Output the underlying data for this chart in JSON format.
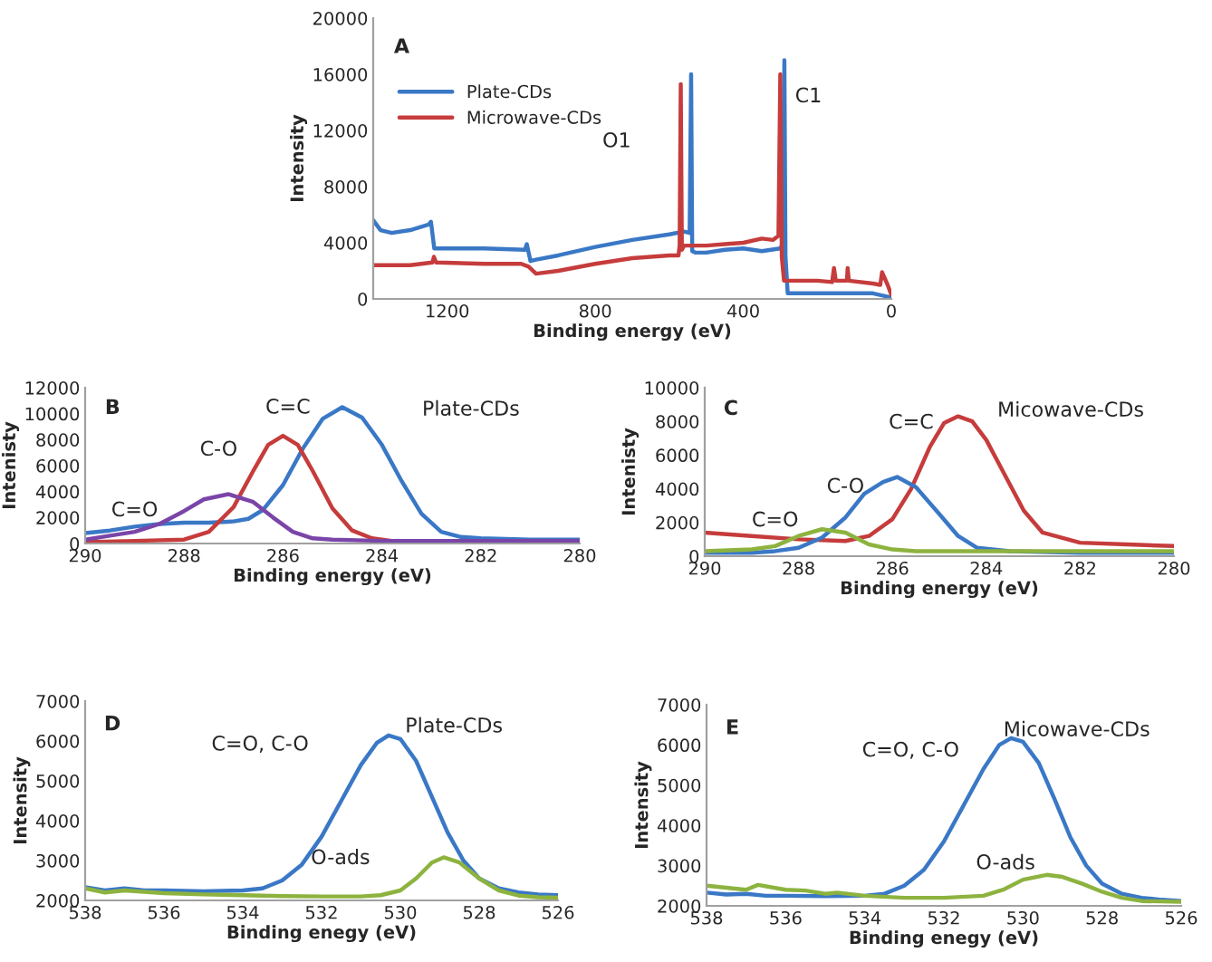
{
  "chart_data": [
    {
      "type": "line",
      "title": "A",
      "xlabel": "Binding energy (eV)",
      "ylabel": "Intensity",
      "xlim": [
        1400,
        0
      ],
      "xticks": [
        1200,
        800,
        400,
        0
      ],
      "ylim": [
        0,
        20000
      ],
      "yticks": [
        0,
        4000,
        8000,
        12000,
        16000,
        20000
      ],
      "grid": false,
      "legend": "top left",
      "annotations": [
        "O1",
        "C1"
      ],
      "series": [
        {
          "name": "Plate-CDs",
          "color": "#3a78c6",
          "x": [
            1400,
            1380,
            1350,
            1300,
            1250,
            1244,
            1235,
            1100,
            990,
            985,
            975,
            960,
            900,
            800,
            700,
            600,
            560,
            545,
            541,
            538,
            530,
            500,
            450,
            400,
            350,
            300,
            292,
            289,
            286,
            280,
            200,
            100,
            50,
            0
          ],
          "values": [
            5600,
            4900,
            4700,
            4900,
            5300,
            5500,
            3600,
            3600,
            3500,
            3900,
            2700,
            2800,
            3100,
            3700,
            4200,
            4600,
            4800,
            4700,
            16000,
            3400,
            3300,
            3300,
            3500,
            3600,
            3400,
            3600,
            4000,
            17000,
            3000,
            400,
            400,
            400,
            400,
            100
          ]
        },
        {
          "name": "Microwave-CDs",
          "color": "#c63c3c",
          "x": [
            1400,
            1300,
            1240,
            1236,
            1230,
            1100,
            1000,
            980,
            960,
            900,
            800,
            700,
            600,
            575,
            572,
            569,
            566,
            560,
            500,
            450,
            400,
            350,
            320,
            305,
            300,
            296,
            290,
            280,
            200,
            160,
            155,
            150,
            120,
            118,
            115,
            50,
            30,
            25,
            10,
            0
          ],
          "values": [
            2400,
            2400,
            2600,
            3000,
            2600,
            2500,
            2500,
            2300,
            1800,
            2000,
            2500,
            2900,
            3100,
            3100,
            3800,
            15300,
            3500,
            3800,
            3800,
            3900,
            4000,
            4300,
            4200,
            4500,
            16000,
            3000,
            1300,
            1300,
            1300,
            1200,
            2200,
            1300,
            1300,
            2200,
            1300,
            1100,
            1000,
            1900,
            1000,
            300
          ]
        }
      ]
    },
    {
      "type": "line",
      "title": "B",
      "subtitle": "Plate-CDs",
      "xlabel": "Binding energy (eV)",
      "ylabel": "Intenisty",
      "xlim": [
        290,
        280
      ],
      "xticks": [
        290,
        288,
        286,
        284,
        282,
        280
      ],
      "ylim": [
        0,
        12000
      ],
      "yticks": [
        0,
        2000,
        4000,
        6000,
        8000,
        10000,
        12000
      ],
      "grid": false,
      "annotations": [
        "C=C",
        "C-O",
        "C=O"
      ],
      "series": [
        {
          "color": "#3a78c6",
          "x": [
            290,
            289.5,
            289,
            288.5,
            288,
            287.5,
            287,
            286.7,
            286.4,
            286,
            285.6,
            285.2,
            284.8,
            284.4,
            284,
            283.6,
            283.2,
            282.8,
            282.4,
            282,
            281,
            280
          ],
          "values": [
            800,
            1000,
            1300,
            1500,
            1600,
            1600,
            1700,
            1900,
            2600,
            4500,
            7300,
            9600,
            10500,
            9700,
            7600,
            4800,
            2300,
            900,
            500,
            400,
            300,
            300
          ]
        },
        {
          "color": "#c63c3c",
          "x": [
            290,
            289,
            288,
            287.5,
            287,
            286.6,
            286.3,
            286,
            285.7,
            285.4,
            285,
            284.6,
            284.2,
            283.8
          ],
          "values": [
            100,
            200,
            300,
            900,
            2800,
            5600,
            7600,
            8300,
            7600,
            5600,
            2700,
            1000,
            400,
            200
          ]
        },
        {
          "color": "#7a45a8",
          "x": [
            290,
            289.5,
            289,
            288.5,
            288,
            287.6,
            287.1,
            286.6,
            286.2,
            285.8,
            285.4,
            285,
            284,
            282,
            280
          ],
          "values": [
            300,
            600,
            900,
            1500,
            2500,
            3400,
            3800,
            3200,
            2000,
            900,
            400,
            300,
            200,
            200,
            200
          ]
        }
      ]
    },
    {
      "type": "line",
      "title": "C",
      "subtitle": "Micowave-CDs",
      "xlabel": "Binding energy (eV)",
      "ylabel": "Intenisty",
      "xlim": [
        290,
        280
      ],
      "xticks": [
        290,
        288,
        286,
        284,
        282,
        280
      ],
      "ylim": [
        0,
        10000
      ],
      "yticks": [
        0,
        2000,
        4000,
        6000,
        8000,
        10000
      ],
      "grid": false,
      "annotations": [
        "C=C",
        "C-O",
        "C=O"
      ],
      "series": [
        {
          "color": "#c63c3c",
          "x": [
            290,
            289,
            288,
            287,
            286.5,
            286,
            285.6,
            285.2,
            284.9,
            284.6,
            284.3,
            284,
            283.6,
            283.2,
            282.8,
            282,
            281,
            280
          ],
          "values": [
            1400,
            1200,
            1000,
            900,
            1200,
            2200,
            4000,
            6500,
            7900,
            8300,
            8000,
            6900,
            4800,
            2700,
            1400,
            800,
            700,
            600
          ]
        },
        {
          "color": "#3a78c6",
          "x": [
            290,
            289,
            288.5,
            288,
            287.5,
            287,
            286.6,
            286.2,
            285.9,
            285.5,
            285,
            284.6,
            284.2,
            283.5,
            282,
            280
          ],
          "values": [
            200,
            200,
            300,
            500,
            1100,
            2300,
            3700,
            4400,
            4700,
            4100,
            2500,
            1200,
            500,
            300,
            200,
            200
          ]
        },
        {
          "color": "#8db33f",
          "x": [
            290,
            289,
            288.5,
            288,
            287.5,
            287,
            286.5,
            286,
            285.5,
            285,
            283,
            280
          ],
          "values": [
            300,
            400,
            600,
            1200,
            1600,
            1400,
            700,
            400,
            300,
            300,
            300,
            300
          ]
        }
      ]
    },
    {
      "type": "line",
      "title": "D",
      "subtitle": "Plate-CDs",
      "xlabel": "Binding enegy (eV)",
      "ylabel": "Intensity",
      "xlim": [
        538,
        526
      ],
      "xticks": [
        538,
        536,
        534,
        532,
        530,
        528,
        526
      ],
      "ylim": [
        2000,
        7000
      ],
      "yticks": [
        2000,
        3000,
        4000,
        5000,
        6000,
        7000
      ],
      "grid": false,
      "annotations": [
        "C=O, C-O",
        "O-ads"
      ],
      "series": [
        {
          "color": "#3a78c6",
          "x": [
            538,
            537.5,
            537,
            536.5,
            536,
            535,
            534,
            533.5,
            533,
            532.5,
            532,
            531.5,
            531,
            530.6,
            530.3,
            530,
            529.6,
            529.2,
            528.8,
            528.4,
            528,
            527.5,
            527,
            526.5,
            526
          ],
          "values": [
            2330,
            2250,
            2300,
            2250,
            2250,
            2230,
            2250,
            2300,
            2500,
            2900,
            3600,
            4500,
            5400,
            5950,
            6140,
            6050,
            5500,
            4600,
            3700,
            3000,
            2550,
            2300,
            2200,
            2150,
            2130
          ]
        },
        {
          "color": "#8db33f",
          "x": [
            538,
            537.5,
            537,
            536,
            535,
            534,
            533,
            532,
            531,
            530.5,
            530,
            529.6,
            529.2,
            528.9,
            528.5,
            528,
            527.5,
            527,
            526.5,
            526
          ],
          "values": [
            2300,
            2200,
            2250,
            2180,
            2150,
            2130,
            2110,
            2100,
            2100,
            2130,
            2250,
            2550,
            2950,
            3080,
            2950,
            2550,
            2250,
            2120,
            2080,
            2070
          ]
        }
      ]
    },
    {
      "type": "line",
      "title": "E",
      "subtitle": "Micowave-CDs",
      "xlabel": "Binding enegy (eV)",
      "ylabel": "Intensity",
      "xlim": [
        538,
        526
      ],
      "xticks": [
        538,
        536,
        534,
        532,
        530,
        528,
        526
      ],
      "ylim": [
        2000,
        7000
      ],
      "yticks": [
        2000,
        3000,
        4000,
        5000,
        6000,
        7000
      ],
      "grid": false,
      "annotations": [
        "C=O, C-O",
        "O-ads"
      ],
      "series": [
        {
          "color": "#3a78c6",
          "x": [
            538,
            537.5,
            537,
            536.5,
            536,
            535,
            534,
            533.5,
            533,
            532.5,
            532,
            531.5,
            531,
            530.6,
            530.3,
            530,
            529.6,
            529.2,
            528.8,
            528.4,
            528,
            527.5,
            527,
            526.5,
            526
          ],
          "values": [
            2330,
            2280,
            2300,
            2250,
            2250,
            2240,
            2250,
            2300,
            2500,
            2900,
            3600,
            4500,
            5400,
            6000,
            6170,
            6080,
            5550,
            4650,
            3700,
            3000,
            2550,
            2300,
            2200,
            2150,
            2120
          ]
        },
        {
          "color": "#8db33f",
          "x": [
            538,
            537.5,
            537,
            536.7,
            536,
            535.5,
            535,
            534.7,
            534,
            533,
            532,
            531,
            530.5,
            530,
            529.4,
            529,
            528.5,
            528,
            527.5,
            527,
            526
          ],
          "values": [
            2500,
            2450,
            2400,
            2520,
            2400,
            2380,
            2300,
            2330,
            2250,
            2200,
            2200,
            2250,
            2400,
            2650,
            2770,
            2720,
            2550,
            2350,
            2200,
            2120,
            2100
          ]
        }
      ]
    }
  ]
}
